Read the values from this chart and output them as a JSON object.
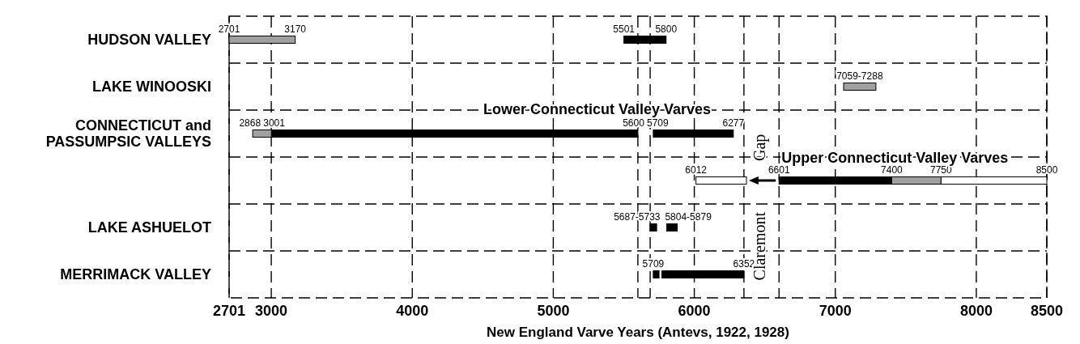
{
  "chart_data": {
    "type": "bar",
    "orientation": "horizontal",
    "categories": [
      "HUDSON VALLEY",
      "LAKE WINOOSKI",
      "CONNECTICUT and PASSUMPSIC VALLEYS",
      null,
      "LAKE ASHUELOT",
      "MERRIMACK VALLEY"
    ],
    "series": [
      {
        "color": "#000000",
        "base": [
          5501,
          null,
          3001,
          6601,
          5687,
          5709
        ],
        "values": [
          299,
          null,
          2599,
          799,
          46,
          41
        ]
      },
      {
        "color": "#000000",
        "base": [
          null,
          null,
          5709,
          null,
          5804,
          5770
        ],
        "values": [
          null,
          null,
          568,
          null,
          75,
          582
        ]
      },
      {
        "color": "#a0a0a0",
        "base": [
          2701,
          7059,
          2868,
          7400,
          null,
          null
        ],
        "values": [
          469,
          229,
          133,
          350,
          null,
          null
        ]
      },
      {
        "color": "#ffffff",
        "base": [
          null,
          null,
          null,
          7750,
          null,
          null
        ],
        "values": [
          null,
          null,
          null,
          750,
          null,
          null
        ]
      },
      {
        "color": "#ffffff",
        "base": [
          null,
          null,
          null,
          6012,
          null,
          null
        ],
        "values": [
          null,
          null,
          null,
          358,
          null,
          null
        ]
      }
    ],
    "xlabel": "New England Varve Years (Antevs, 1922, 1928)",
    "xlim": [
      2701,
      8500
    ],
    "xticks": [
      2701,
      3000,
      4000,
      5000,
      6000,
      7000,
      8000,
      8500
    ],
    "grid": "x",
    "ref_lines": [
      {
        "axis": "x",
        "value": 5600,
        "line_style": "dashed"
      },
      {
        "axis": "x",
        "value": 5687,
        "line_style": "dashed"
      },
      {
        "axis": "x",
        "value": 6352,
        "line_style": "dashed"
      },
      {
        "axis": "x",
        "value": 6601,
        "line_style": "dashed"
      }
    ],
    "annotations": [
      "Lower Connecticut Valley Varves",
      "Upper Connecticut Valley Varves",
      "Gap",
      "Claremont",
      {
        "text": "2701",
        "x": 2701,
        "y": "HUDSON VALLEY"
      },
      {
        "text": "3170",
        "x": 3170,
        "y": "HUDSON VALLEY"
      },
      {
        "text": "5501",
        "x": 5501,
        "y": "HUDSON VALLEY"
      },
      {
        "text": "5800",
        "x": 5800,
        "y": "HUDSON VALLEY"
      },
      {
        "text": "7059-7288",
        "x": 7173,
        "y": "LAKE WINOOSKI"
      },
      {
        "text": "2868",
        "x": 2868,
        "y": "CONNECTICUT and PASSUMPSIC VALLEYS"
      },
      {
        "text": "3001",
        "x": 3001,
        "y": "CONNECTICUT and PASSUMPSIC VALLEYS"
      },
      {
        "text": "5600",
        "x": 5600,
        "y": "CONNECTICUT and PASSUMPSIC VALLEYS"
      },
      {
        "text": "5709",
        "x": 5709,
        "y": "CONNECTICUT and PASSUMPSIC VALLEYS"
      },
      {
        "text": "6277",
        "x": 6277,
        "y": "CONNECTICUT and PASSUMPSIC VALLEYS"
      },
      "6012",
      "6601",
      "7400",
      "7750",
      "8500",
      {
        "text": "5687-5733",
        "x": 5710,
        "y": "LAKE ASHUELOT"
      },
      {
        "text": "5804-5879",
        "x": 5841,
        "y": "LAKE ASHUELOT"
      },
      {
        "text": "5709",
        "x": 5709,
        "y": "MERRIMACK VALLEY"
      },
      {
        "text": "6352",
        "x": 6352,
        "y": "MERRIMACK VALLEY"
      }
    ]
  }
}
